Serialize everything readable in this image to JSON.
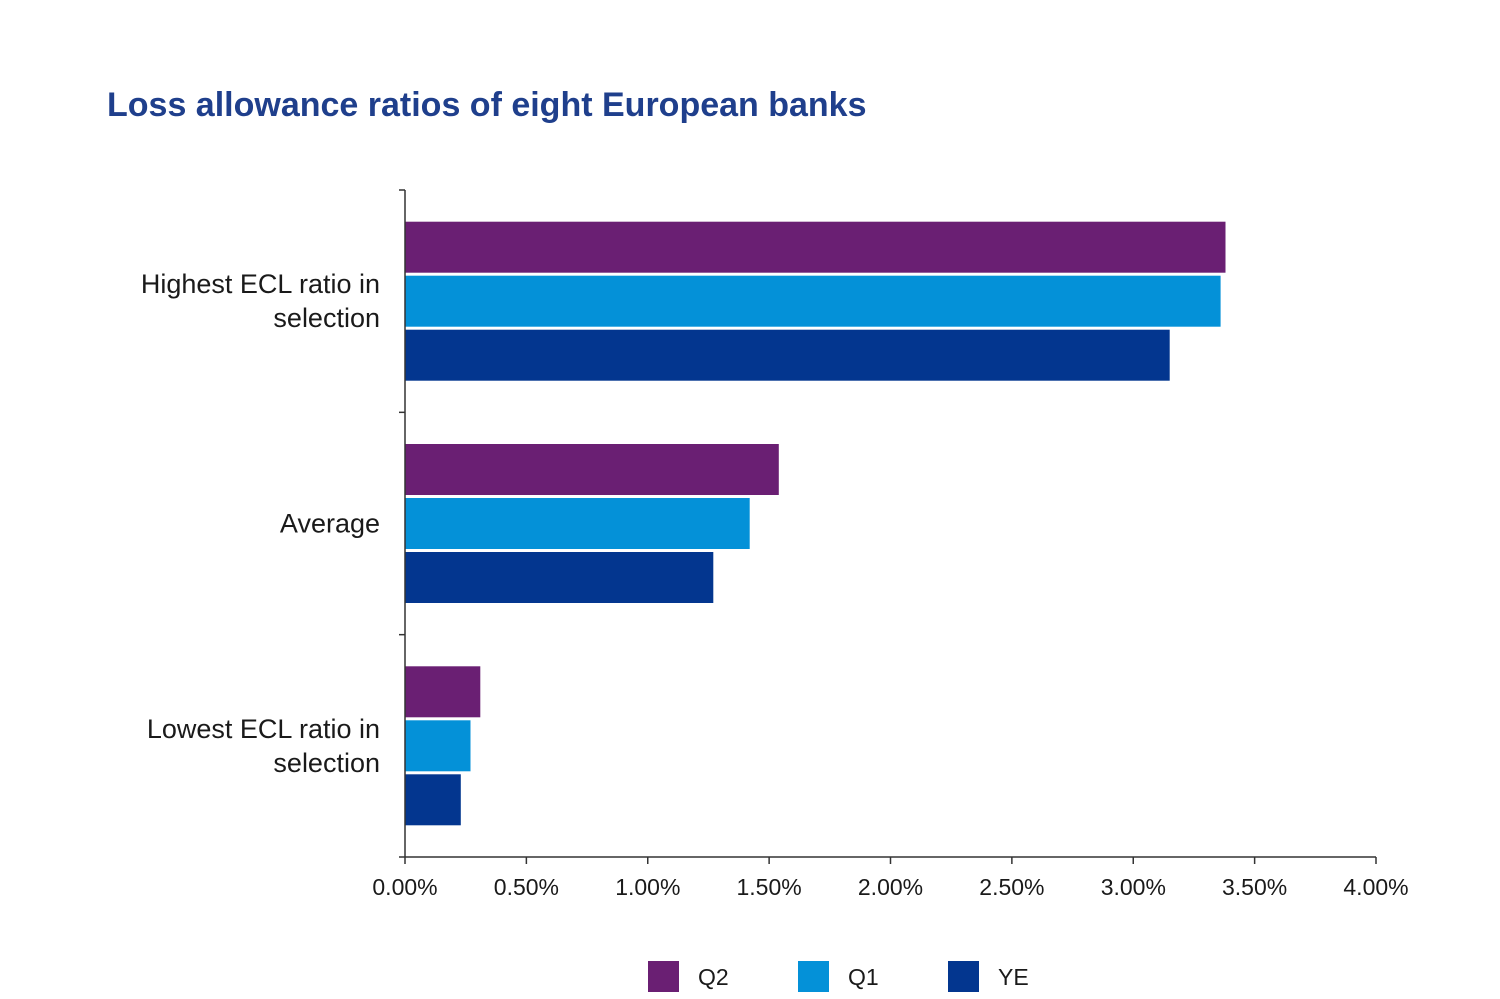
{
  "chart_data": {
    "type": "bar",
    "orientation": "horizontal",
    "title": "Loss allowance ratios of eight European banks",
    "xlabel": "",
    "ylabel": "",
    "xlim": [
      0,
      4.0
    ],
    "x_ticks": [
      "0.00%",
      "0.50%",
      "1.00%",
      "1.50%",
      "2.00%",
      "2.50%",
      "3.00%",
      "3.50%",
      "4.00%"
    ],
    "categories": [
      {
        "lines": [
          "Highest ECL ratio in",
          "selection"
        ]
      },
      {
        "lines": [
          "Average"
        ]
      },
      {
        "lines": [
          "Lowest ECL ratio in",
          "selection"
        ]
      }
    ],
    "series": [
      {
        "name": "Q2",
        "color": "#6a1f73",
        "values": [
          3.38,
          1.54,
          0.31
        ]
      },
      {
        "name": "Q1",
        "color": "#0491d8",
        "values": [
          3.36,
          1.42,
          0.27
        ]
      },
      {
        "name": "YE",
        "color": "#03368f",
        "values": [
          3.15,
          1.27,
          0.23
        ]
      }
    ],
    "grid": false,
    "legend_position": "bottom"
  },
  "colors": {
    "title": "#1f3f8c",
    "axis": "#333333"
  }
}
